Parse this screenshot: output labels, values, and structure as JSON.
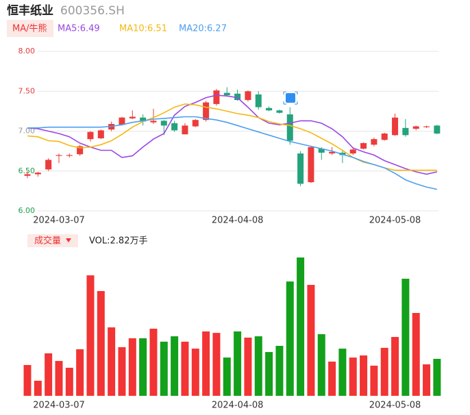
{
  "chart_data": [
    {
      "type": "candlestick",
      "title": "恒丰纸业",
      "subtitle": "600356.SH",
      "button": "MA/牛熊",
      "categories": [
        null,
        null,
        null,
        "2024-03-07",
        null,
        null,
        null,
        null,
        null,
        null,
        null,
        null,
        null,
        null,
        null,
        null,
        null,
        null,
        null,
        null,
        "2024-04-08",
        null,
        null,
        null,
        null,
        null,
        null,
        null,
        null,
        null,
        null,
        null,
        null,
        null,
        null,
        "2024-05-08",
        null,
        null,
        null,
        null
      ],
      "open": [
        6.44,
        6.46,
        6.52,
        6.69,
        6.69,
        6.71,
        6.9,
        6.91,
        7.02,
        7.08,
        7.16,
        7.17,
        7.11,
        7.13,
        7.1,
        6.96,
        7.06,
        7.14,
        7.34,
        7.48,
        7.47,
        7.39,
        7.46,
        7.29,
        7.26,
        7.21,
        6.72,
        6.36,
        6.78,
        6.72,
        6.73,
        6.72,
        6.78,
        6.83,
        6.89,
        6.95,
        7.04,
        7.03,
        7.05,
        7.07
      ],
      "high": [
        6.5,
        6.49,
        6.66,
        6.72,
        6.72,
        6.83,
        7.0,
        7.02,
        7.12,
        7.18,
        7.26,
        7.21,
        7.28,
        7.14,
        7.13,
        7.1,
        7.15,
        7.38,
        7.53,
        7.55,
        7.52,
        7.51,
        7.5,
        7.31,
        7.27,
        7.3,
        6.75,
        6.81,
        6.8,
        6.8,
        6.76,
        6.8,
        6.86,
        6.92,
        6.98,
        7.22,
        7.15,
        7.07,
        7.07,
        7.08
      ],
      "low": [
        6.41,
        6.43,
        6.5,
        6.6,
        6.67,
        6.69,
        6.87,
        6.9,
        7.0,
        7.07,
        7.15,
        7.07,
        7.09,
        6.95,
        6.99,
        6.96,
        7.05,
        7.12,
        7.32,
        7.44,
        7.38,
        7.37,
        7.27,
        7.25,
        7.22,
        6.83,
        6.31,
        6.35,
        6.64,
        6.7,
        6.6,
        6.7,
        6.77,
        6.81,
        6.88,
        6.94,
        6.93,
        7.01,
        7.04,
        6.96
      ],
      "close": [
        6.46,
        6.48,
        6.64,
        6.7,
        6.7,
        6.81,
        6.99,
        7.01,
        7.09,
        7.17,
        7.18,
        7.12,
        7.13,
        7.07,
        7.01,
        7.07,
        7.14,
        7.36,
        7.51,
        7.45,
        7.39,
        7.5,
        7.3,
        7.26,
        7.23,
        6.88,
        6.34,
        6.8,
        6.73,
        6.74,
        6.7,
        6.77,
        6.85,
        6.9,
        6.97,
        7.17,
        6.95,
        7.06,
        7.06,
        6.97
      ],
      "up_color": "#ec3b3b",
      "down_color": "#24a27c",
      "series": [
        {
          "name": "MA5:6.49",
          "color": "#9b45e4",
          "values": [
            7.04,
            7.03,
            7.0,
            6.97,
            6.93,
            6.85,
            6.8,
            6.76,
            6.76,
            6.67,
            6.69,
            6.8,
            6.9,
            6.97,
            7.2,
            7.31,
            7.36,
            7.42,
            7.45,
            7.44,
            7.42,
            7.3,
            7.17,
            7.1,
            7.08,
            7.1,
            7.13,
            7.13,
            7.1,
            7.03,
            6.93,
            6.79,
            6.74,
            6.7,
            6.63,
            6.58,
            6.53,
            6.49,
            6.46,
            6.49
          ]
        },
        {
          "name": "MA10:6.51",
          "color": "#f5b70f",
          "values": [
            6.94,
            6.93,
            6.88,
            6.87,
            6.82,
            6.79,
            6.8,
            6.83,
            6.88,
            6.96,
            7.05,
            7.12,
            7.17,
            7.23,
            7.3,
            7.34,
            7.33,
            7.3,
            7.28,
            7.25,
            7.22,
            7.2,
            7.17,
            7.12,
            7.09,
            7.07,
            7.03,
            6.98,
            6.91,
            6.84,
            6.76,
            6.67,
            6.61,
            6.58,
            6.54,
            6.51,
            6.51,
            6.51,
            6.51,
            6.51
          ]
        },
        {
          "name": "MA20:6.27",
          "color": "#4a9ff0",
          "values": [
            7.04,
            7.04,
            7.05,
            7.05,
            7.05,
            7.05,
            7.05,
            7.05,
            7.06,
            7.08,
            7.11,
            7.13,
            7.15,
            7.16,
            7.17,
            7.18,
            7.18,
            7.16,
            7.14,
            7.11,
            7.07,
            7.03,
            6.99,
            6.95,
            6.91,
            6.87,
            6.84,
            6.81,
            6.78,
            6.75,
            6.71,
            6.67,
            6.62,
            6.58,
            6.54,
            6.47,
            6.39,
            6.34,
            6.3,
            6.27
          ]
        }
      ],
      "ylim": [
        6,
        8
      ],
      "yticks": [
        {
          "value": 6,
          "label": "6.00"
        },
        {
          "value": 6.5,
          "label": "6.50"
        },
        {
          "value": 7,
          "label": "7.00"
        },
        {
          "value": 7.5,
          "label": "7.50"
        },
        {
          "value": 8,
          "label": "8.00"
        }
      ],
      "ytick_colors": [
        "#1a9e4a",
        "#1a9e4a",
        "#999999",
        "#e23b3b",
        "#e23b3b"
      ],
      "grid": true
    },
    {
      "type": "bar",
      "title": "成交量",
      "subtitle": "VOL:2.82万手",
      "values": [
        2.35,
        1.15,
        3.24,
        2.66,
        2.14,
        3.55,
        9.19,
        7.99,
        5.22,
        3.71,
        4.39,
        4.39,
        5.12,
        4.13,
        4.54,
        4.13,
        3.6,
        4.91,
        4.8,
        2.92,
        4.91,
        4.44,
        4.54,
        3.34,
        3.81,
        8.72,
        10.55,
        8.46,
        4.7,
        2.61,
        3.6,
        2.92,
        3.08,
        2.3,
        3.66,
        4.49,
        8.93,
        6.32,
        2.4,
        2.82
      ],
      "up_color": "#f23434",
      "down_color": "#13a01b"
    }
  ]
}
